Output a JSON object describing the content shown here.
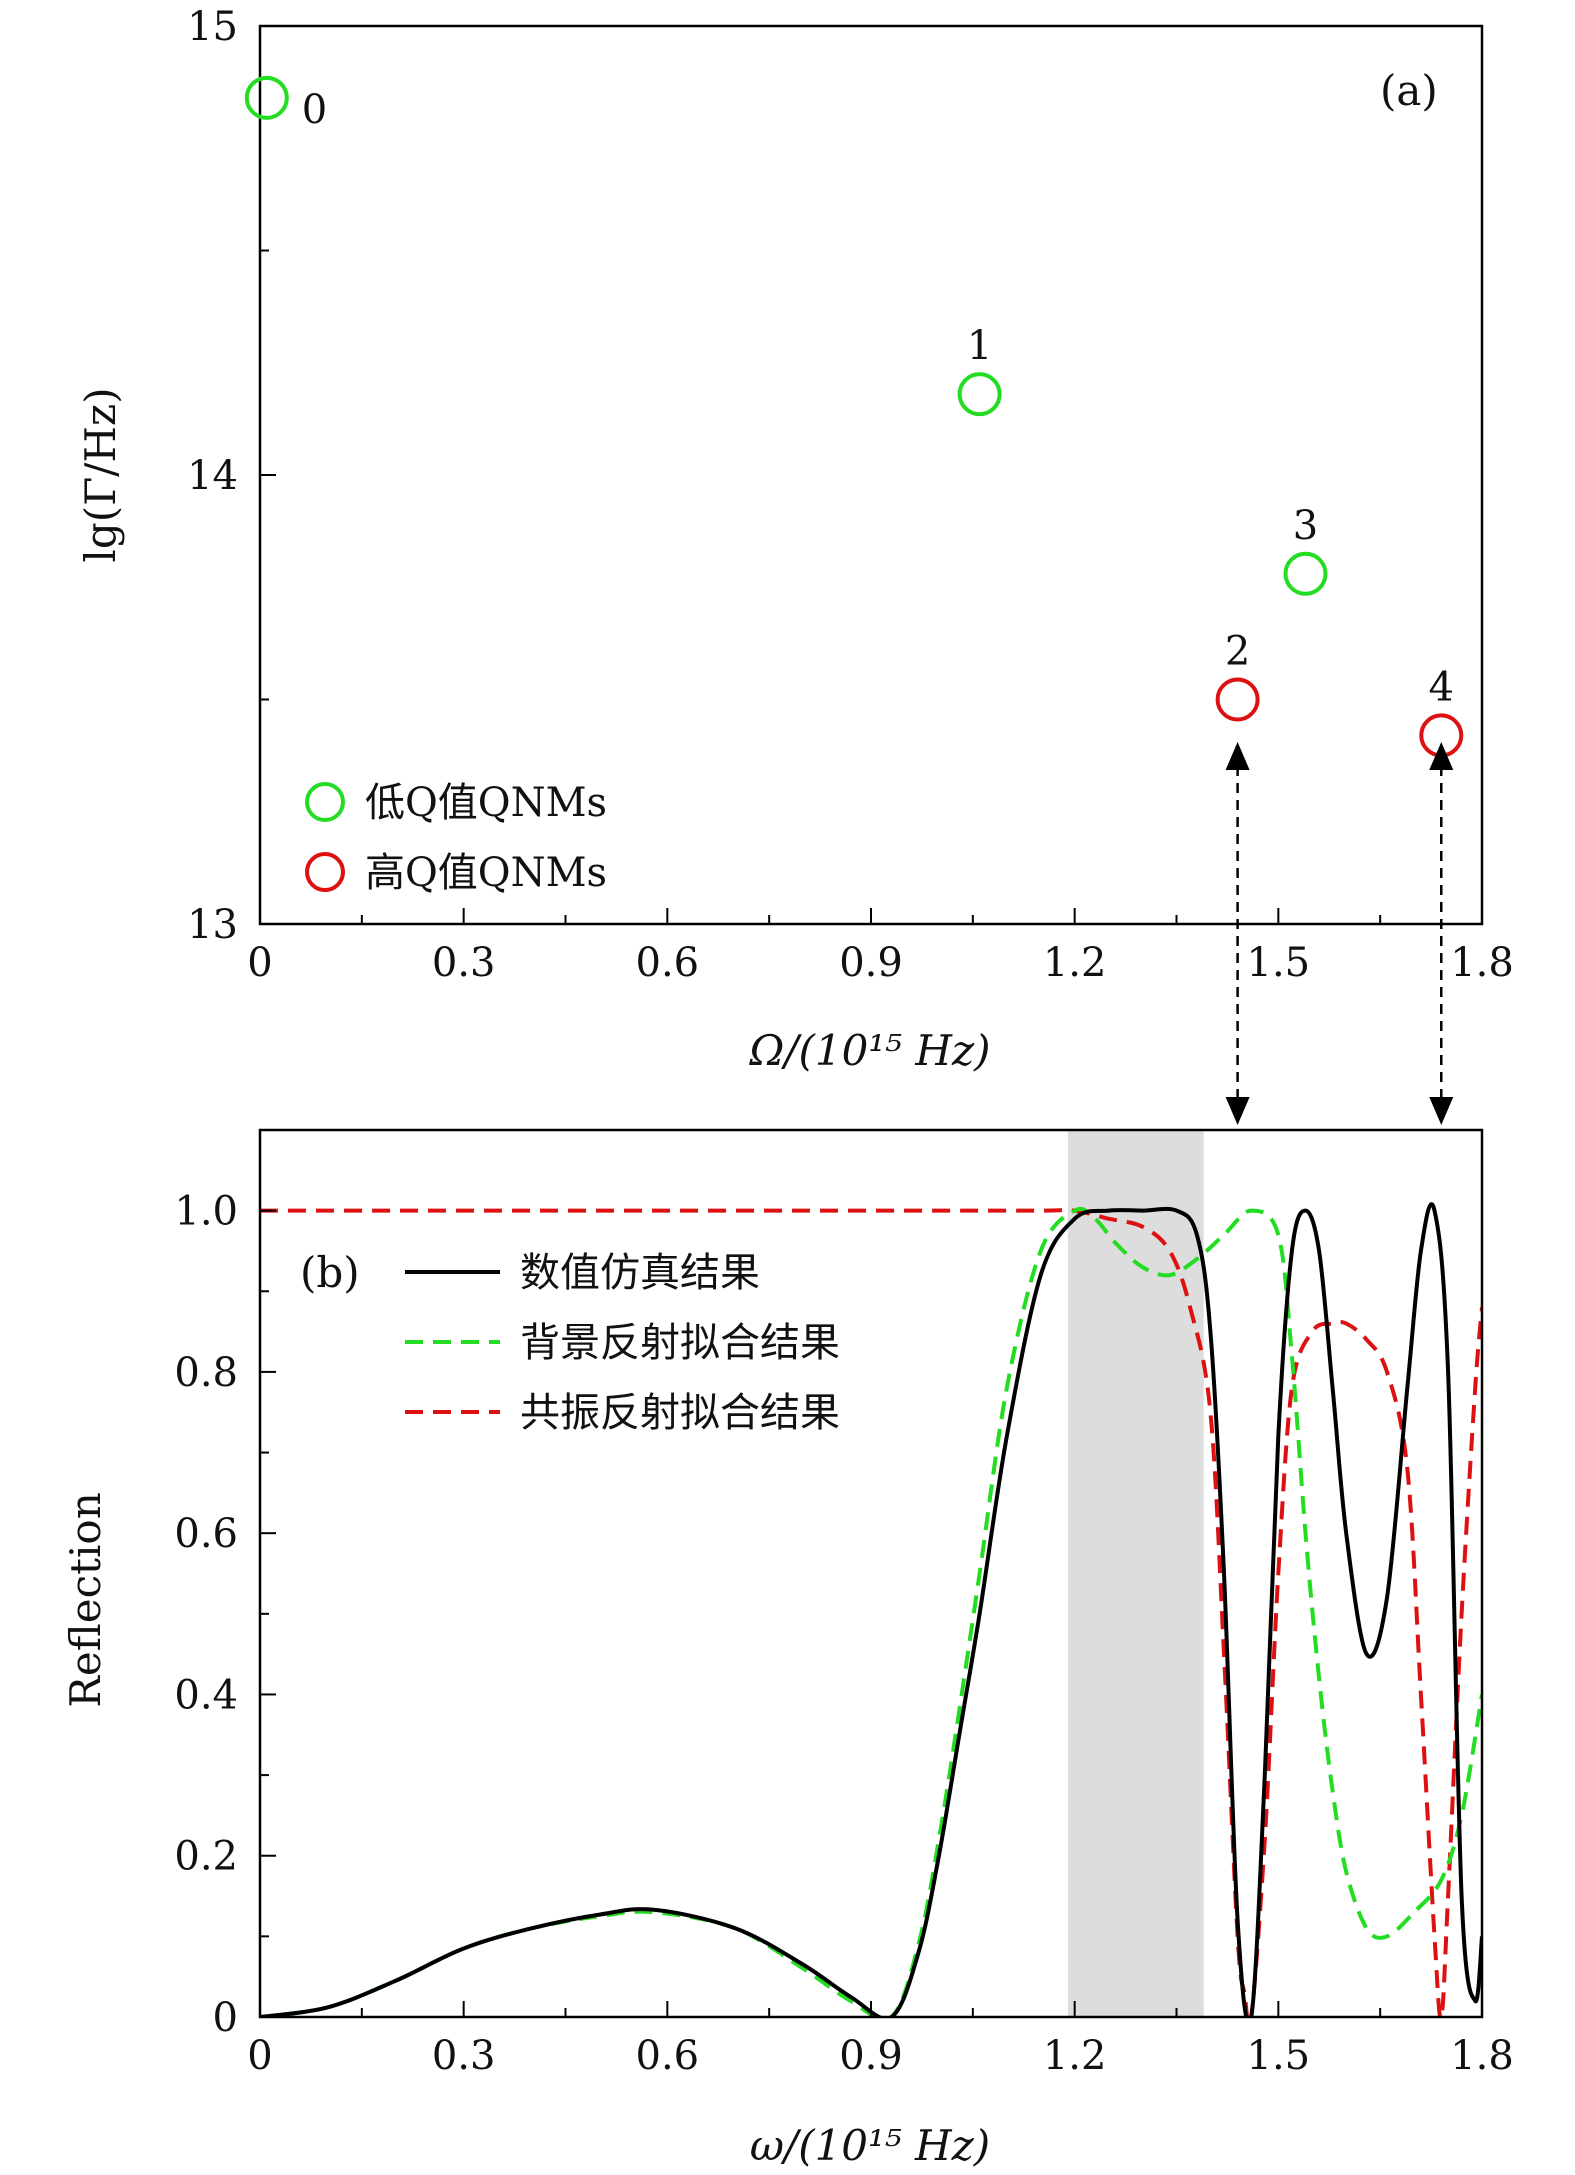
{
  "chart_data": [
    {
      "type": "scatter",
      "panel_label": "(a)",
      "xlabel": "Ω/(10¹⁵ Hz)",
      "ylabel": "lg(Γ/Hz)",
      "xlim": [
        0,
        1.8
      ],
      "ylim": [
        13,
        15
      ],
      "x_ticks": [
        "0",
        "0.3",
        "0.6",
        "0.9",
        "1.2",
        "1.5",
        "1.8"
      ],
      "y_ticks": [
        "13",
        "14",
        "15"
      ],
      "legend_position": "bottom-left",
      "series": [
        {
          "name": "低Q值QNMs",
          "color": "#22dd22",
          "points": [
            {
              "label": "0",
              "x": 0.01,
              "y": 14.84
            },
            {
              "label": "1",
              "x": 1.06,
              "y": 14.18
            },
            {
              "label": "3",
              "x": 1.54,
              "y": 13.78
            }
          ]
        },
        {
          "name": "高Q值QNMs",
          "color": "#dd1111",
          "points": [
            {
              "label": "2",
              "x": 1.44,
              "y": 13.5
            },
            {
              "label": "4",
              "x": 1.74,
              "y": 13.42
            }
          ]
        }
      ]
    },
    {
      "type": "line",
      "panel_label": "(b)",
      "xlabel": "ω/(10¹⁵ Hz)",
      "ylabel": "Reflection",
      "xlim": [
        0,
        1.8
      ],
      "ylim": [
        0,
        1.1
      ],
      "x_ticks": [
        "0",
        "0.3",
        "0.6",
        "0.9",
        "1.2",
        "1.5",
        "1.8"
      ],
      "y_ticks": [
        "0",
        "0.2",
        "0.4",
        "0.6",
        "0.8",
        "1.0"
      ],
      "legend_position": "top-left",
      "shaded_region": {
        "x": [
          1.19,
          1.39
        ],
        "color": "#dddddd"
      },
      "series": [
        {
          "name": "数值仿真结果",
          "color": "#000000",
          "style": "solid",
          "x": [
            0,
            0.1,
            0.2,
            0.3,
            0.4,
            0.5,
            0.58,
            0.7,
            0.8,
            0.87,
            0.93,
            0.97,
            1.0,
            1.03,
            1.06,
            1.1,
            1.15,
            1.2,
            1.25,
            1.3,
            1.35,
            1.38,
            1.4,
            1.42,
            1.44,
            1.46,
            1.48,
            1.5,
            1.52,
            1.54,
            1.56,
            1.58,
            1.6,
            1.63,
            1.66,
            1.69,
            1.71,
            1.73,
            1.75,
            1.77,
            1.79,
            1.8
          ],
          "y": [
            0,
            0.012,
            0.045,
            0.085,
            0.11,
            0.127,
            0.133,
            0.11,
            0.065,
            0.025,
            0.0,
            0.08,
            0.2,
            0.35,
            0.5,
            0.72,
            0.92,
            0.99,
            1.0,
            1.0,
            1.0,
            0.97,
            0.85,
            0.55,
            0.12,
            0.0,
            0.3,
            0.72,
            0.95,
            1.0,
            0.95,
            0.78,
            0.6,
            0.45,
            0.52,
            0.78,
            0.95,
            1.0,
            0.8,
            0.15,
            0.02,
            0.1
          ]
        },
        {
          "name": "背景反射拟合结果",
          "color": "#22dd22",
          "style": "dashed",
          "x": [
            0,
            0.1,
            0.2,
            0.3,
            0.4,
            0.5,
            0.58,
            0.7,
            0.8,
            0.87,
            0.93,
            0.97,
            1.0,
            1.03,
            1.06,
            1.1,
            1.15,
            1.2,
            1.23,
            1.26,
            1.3,
            1.34,
            1.38,
            1.42,
            1.46,
            1.5,
            1.52,
            1.54,
            1.56,
            1.58,
            1.6,
            1.63,
            1.66,
            1.7,
            1.74,
            1.77,
            1.8
          ],
          "y": [
            0,
            0.012,
            0.045,
            0.085,
            0.11,
            0.125,
            0.13,
            0.11,
            0.06,
            0.02,
            0.0,
            0.09,
            0.22,
            0.38,
            0.55,
            0.78,
            0.95,
            1.0,
            0.99,
            0.96,
            0.93,
            0.92,
            0.94,
            0.97,
            1.0,
            0.97,
            0.82,
            0.6,
            0.42,
            0.28,
            0.18,
            0.11,
            0.1,
            0.13,
            0.17,
            0.25,
            0.4
          ]
        },
        {
          "name": "共振反射拟合结果",
          "color": "#dd1111",
          "style": "dashed",
          "x": [
            0,
            0.2,
            0.4,
            0.6,
            0.8,
            1.0,
            1.15,
            1.2,
            1.25,
            1.3,
            1.34,
            1.37,
            1.4,
            1.42,
            1.44,
            1.45,
            1.46,
            1.48,
            1.5,
            1.52,
            1.55,
            1.58,
            1.6,
            1.63,
            1.66,
            1.69,
            1.71,
            1.73,
            1.74,
            1.75,
            1.77,
            1.79,
            1.8
          ],
          "y": [
            1.0,
            1.0,
            1.0,
            1.0,
            1.0,
            1.0,
            1.0,
            1.0,
            0.99,
            0.98,
            0.95,
            0.88,
            0.75,
            0.45,
            0.1,
            0.03,
            0.0,
            0.22,
            0.55,
            0.78,
            0.85,
            0.86,
            0.86,
            0.84,
            0.8,
            0.68,
            0.4,
            0.1,
            0.0,
            0.15,
            0.5,
            0.78,
            0.88
          ]
        }
      ]
    }
  ],
  "arrows": [
    {
      "label": "2",
      "x": 1.44
    },
    {
      "label": "4",
      "x": 1.74
    }
  ]
}
